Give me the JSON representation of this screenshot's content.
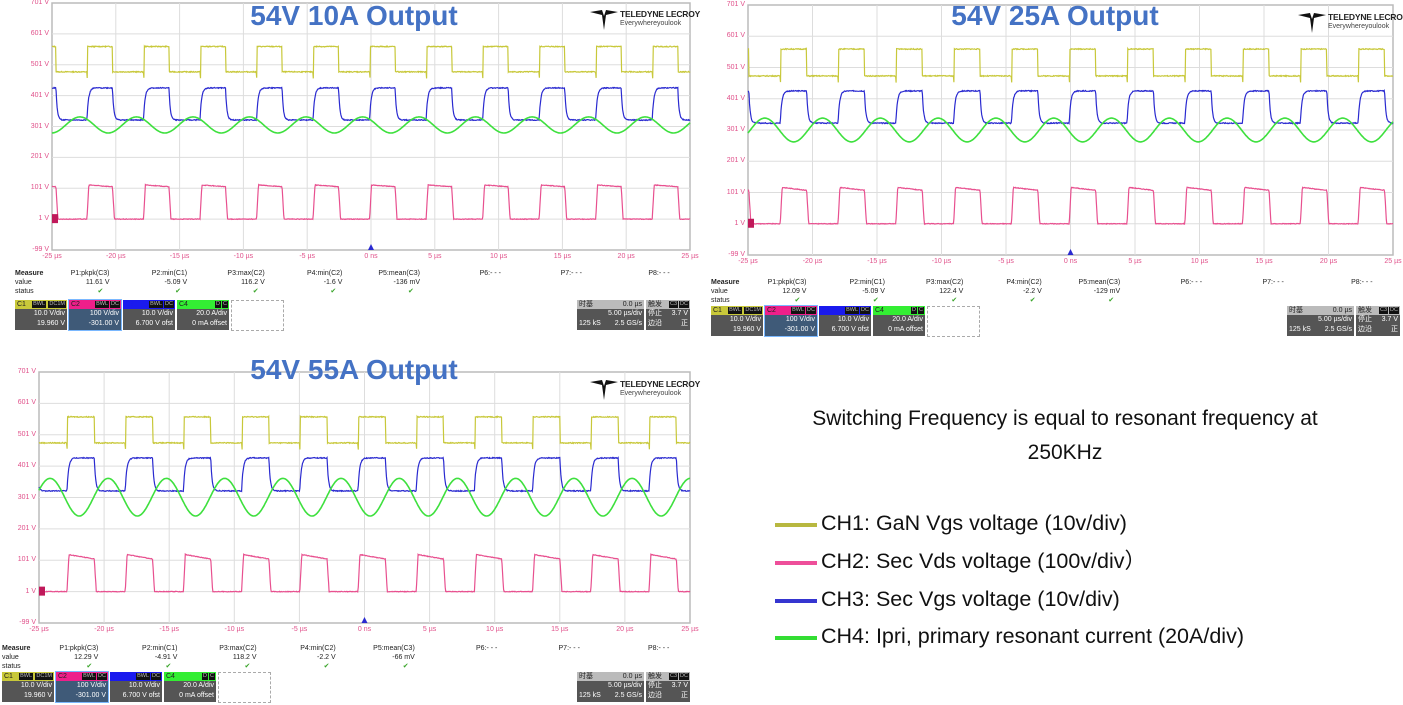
{
  "colors": {
    "C1": "#c8c83a",
    "C2": "#e8508f",
    "C3": "#2a2ad0",
    "C4": "#3ee03e",
    "title": "#4472c4",
    "axis_label": "#e0508a"
  },
  "logo": {
    "brand": "TELEDYNE LECROY",
    "tagline": "Everywhereyoulook"
  },
  "chart_data": [
    {
      "type": "line",
      "title": "54V 10A Output",
      "xlim": [
        -25,
        25
      ],
      "ylim": [
        -99,
        701
      ],
      "grid": true,
      "x_ticks": [
        "-25 µs",
        "-20 µs",
        "-15 µs",
        "-10 µs",
        "-5 µs",
        "0 ns",
        "5 µs",
        "10 µs",
        "15 µs",
        "20 µs",
        "25 µs"
      ],
      "y_ticks": [
        "701 V",
        "601 V",
        "501 V",
        "401 V",
        "301 V",
        "201 V",
        "101 V",
        "1 V",
        "-99 V"
      ],
      "period_us": 4.43,
      "first_rise_us": -22.26,
      "high_us": 2.0,
      "series": [
        {
          "name": "C1",
          "shape": "square",
          "high": 560,
          "low": 478
        },
        {
          "name": "C3",
          "shape": "square",
          "high": 426,
          "low": 322
        },
        {
          "name": "C4",
          "shape": "sine",
          "center": 306,
          "amplitude": 26,
          "peak_lead_us": 0.55
        },
        {
          "name": "C2",
          "shape": "square",
          "high": 112,
          "low": 1,
          "droop": 6
        }
      ]
    },
    {
      "type": "line",
      "title": "54V 25A Output",
      "xlim": [
        -25,
        25
      ],
      "ylim": [
        -99,
        701
      ],
      "grid": true,
      "x_ticks": [
        "-25 µs",
        "-20 µs",
        "-15 µs",
        "-10 µs",
        "-5 µs",
        "0 ns",
        "5 µs",
        "10 µs",
        "15 µs",
        "20 µs",
        "25 µs"
      ],
      "y_ticks": [
        "701 V",
        "601 V",
        "501 V",
        "401 V",
        "301 V",
        "201 V",
        "101 V",
        "1 V",
        "-99 V"
      ],
      "period_us": 4.48,
      "first_rise_us": -22.5,
      "high_us": 2.05,
      "series": [
        {
          "name": "C1",
          "shape": "square",
          "high": 560,
          "low": 474
        },
        {
          "name": "C3",
          "shape": "square",
          "high": 426,
          "low": 323
        },
        {
          "name": "C4",
          "shape": "sine",
          "center": 301,
          "amplitude": 38,
          "peak_lead_us": 1.2
        },
        {
          "name": "C2",
          "shape": "square",
          "high": 118,
          "low": 1,
          "droop": 10
        }
      ]
    },
    {
      "type": "line",
      "title": "54V 55A Output",
      "xlim": [
        -25,
        25
      ],
      "ylim": [
        -99,
        701
      ],
      "grid": true,
      "x_ticks": [
        "-25 µs",
        "-20 µs",
        "-15 µs",
        "-10 µs",
        "-5 µs",
        "0 ns",
        "5 µs",
        "10 µs",
        "15 µs",
        "20 µs",
        "25 µs"
      ],
      "y_ticks": [
        "701 V",
        "601 V",
        "501 V",
        "401 V",
        "301 V",
        "201 V",
        "101 V",
        "1 V",
        "-99 V"
      ],
      "period_us": 4.47,
      "first_rise_us": -22.85,
      "high_us": 2.1,
      "series": [
        {
          "name": "C1",
          "shape": "square",
          "high": 558,
          "low": 475
        },
        {
          "name": "C3",
          "shape": "square",
          "high": 427,
          "low": 322
        },
        {
          "name": "C4",
          "shape": "sine",
          "center": 302,
          "amplitude": 60,
          "peak_lead_us": 1.3
        },
        {
          "name": "C2",
          "shape": "square",
          "high": 120,
          "low": 1,
          "droop": 15
        }
      ]
    }
  ],
  "panels": [
    {
      "measure": {
        "header": "Measure",
        "row_value": "value",
        "row_status": "status",
        "params": [
          {
            "label": "P1:pkpk(C3)",
            "value": "11.61 V",
            "status": "✔"
          },
          {
            "label": "P2:min(C1)",
            "value": "-5.09 V",
            "status": "✔"
          },
          {
            "label": "P3:max(C2)",
            "value": "116.2 V",
            "status": "✔"
          },
          {
            "label": "P4:min(C2)",
            "value": "-1.6 V",
            "status": "✔"
          },
          {
            "label": "P5:mean(C3)",
            "value": "-136 mV",
            "status": "✔"
          },
          {
            "label": "P6:- - -",
            "value": "",
            "status": ""
          },
          {
            "label": "P7:- - -",
            "value": "",
            "status": ""
          },
          {
            "label": "P8:- - -",
            "value": "",
            "status": ""
          }
        ]
      }
    },
    {
      "measure": {
        "header": "Measure",
        "row_value": "value",
        "row_status": "status",
        "params": [
          {
            "label": "P1:pkpk(C3)",
            "value": "12.09 V",
            "status": "✔"
          },
          {
            "label": "P2:min(C1)",
            "value": "-5.09 V",
            "status": "✔"
          },
          {
            "label": "P3:max(C2)",
            "value": "122.4 V",
            "status": "✔"
          },
          {
            "label": "P4:min(C2)",
            "value": "-2.2 V",
            "status": "✔"
          },
          {
            "label": "P5:mean(C3)",
            "value": "-129 mV",
            "status": "✔"
          },
          {
            "label": "P6:- - -",
            "value": "",
            "status": ""
          },
          {
            "label": "P7:- - -",
            "value": "",
            "status": ""
          },
          {
            "label": "P8:- - -",
            "value": "",
            "status": ""
          }
        ]
      }
    },
    {
      "measure": {
        "header": "Measure",
        "row_value": "value",
        "row_status": "status",
        "params": [
          {
            "label": "P1:pkpk(C3)",
            "value": "12.29 V",
            "status": "✔"
          },
          {
            "label": "P2:min(C1)",
            "value": "-4.91 V",
            "status": "✔"
          },
          {
            "label": "P3:max(C2)",
            "value": "118.2 V",
            "status": "✔"
          },
          {
            "label": "P4:min(C2)",
            "value": "-2.2 V",
            "status": "✔"
          },
          {
            "label": "P5:mean(C3)",
            "value": "-66 mV",
            "status": "✔"
          },
          {
            "label": "P6:- - -",
            "value": "",
            "status": ""
          },
          {
            "label": "P7:- - -",
            "value": "",
            "status": ""
          },
          {
            "label": "P8:- - -",
            "value": "",
            "status": ""
          }
        ]
      }
    }
  ],
  "channels": [
    {
      "name": "C1",
      "tags": [
        "BWL",
        "DC1M"
      ],
      "scale": "10.0 V/div",
      "offset": "19.960 V",
      "color": "#c8c83a",
      "bottom": "#555555"
    },
    {
      "name": "C2",
      "tags": [
        "BWL",
        "DC"
      ],
      "scale": "100 V/div",
      "offset": "-301.00 V",
      "color": "#ee1f8a",
      "bottom": "#3f5a78"
    },
    {
      "name": "C3",
      "tags": [
        "BWL",
        "DC"
      ],
      "scale": "10.0 V/div",
      "offset": "6.700 V ofst",
      "color": "#1a1aee",
      "bottom": "#555555"
    },
    {
      "name": "C4",
      "tags": [
        "D",
        "C"
      ],
      "scale": "20.0 A/div",
      "offset": "0 mA offset",
      "color": "#33ee33",
      "bottom": "#555555"
    }
  ],
  "timebase": {
    "label": "时基",
    "delay": "0.0 µs",
    "scale": "5.00 µs/div",
    "samples": "125 kS",
    "rate": "2.5 GS/s"
  },
  "trigger": {
    "label": "触发",
    "tags": [
      "C3",
      "DC"
    ],
    "mode": "停止",
    "level": "3.7 V",
    "type": "边沿",
    "slope": "正"
  },
  "note": {
    "line1": "Switching Frequency is equal to resonant frequency at",
    "line2": "250KHz"
  },
  "legend": [
    {
      "channel": "C1",
      "text": "CH1: GaN Vgs voltage (10v/div)",
      "color": "#b8b840"
    },
    {
      "channel": "C2",
      "text": "CH2: Sec Vds voltage (100v/div）",
      "color": "#ee4f9a"
    },
    {
      "channel": "C3",
      "text": "CH3: Sec Vgs voltage (10v/div)",
      "color": "#3535d0"
    },
    {
      "channel": "C4",
      "text": "CH4: Ipri, primary resonant current (20A/div)",
      "color": "#33dd33"
    }
  ]
}
